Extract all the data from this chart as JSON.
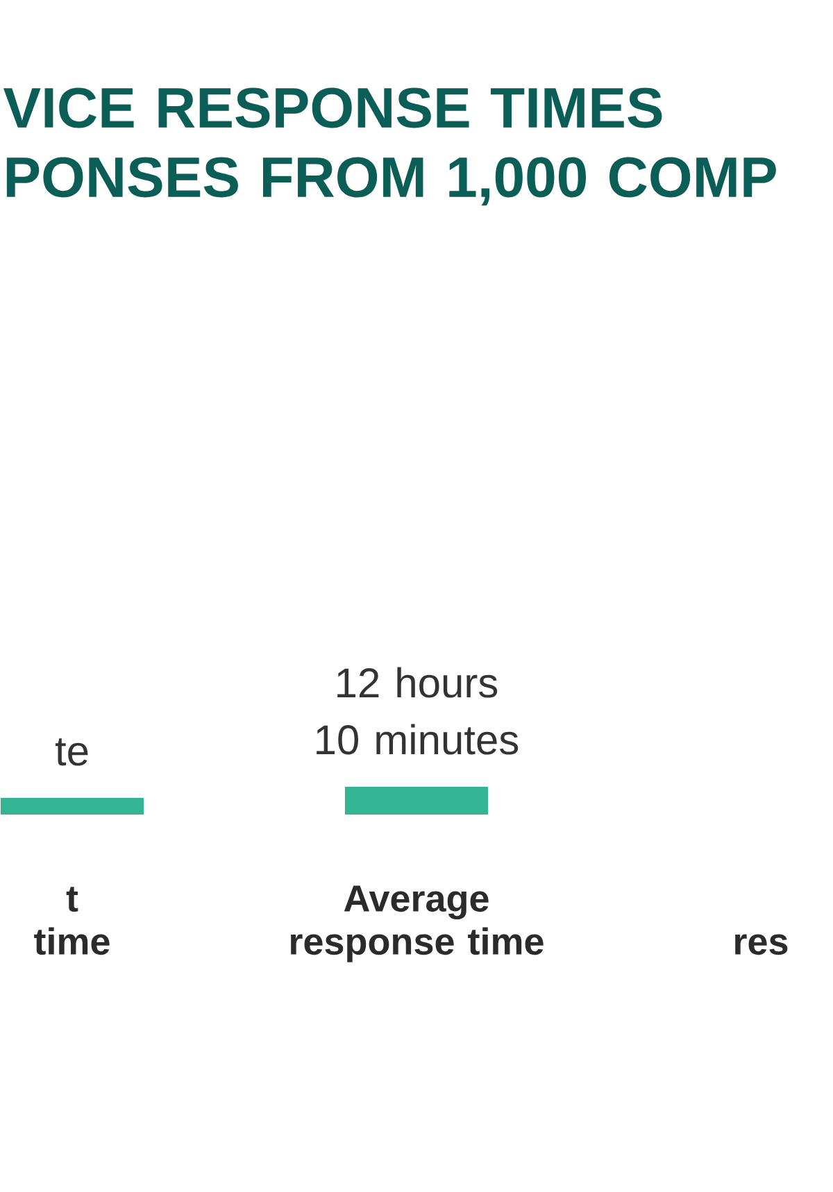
{
  "chart_data": {
    "type": "bar",
    "title": "VICE RESPONSE TIMES PONSES FROM 1,000 COMP",
    "categories": [
      "t\ntime",
      "Average response time",
      "res"
    ],
    "values": [
      7.3,
      12.167,
      null
    ],
    "color": "#33b594",
    "value_labels": [
      "te",
      "12 hours 10 minutes",
      null
    ]
  }
}
